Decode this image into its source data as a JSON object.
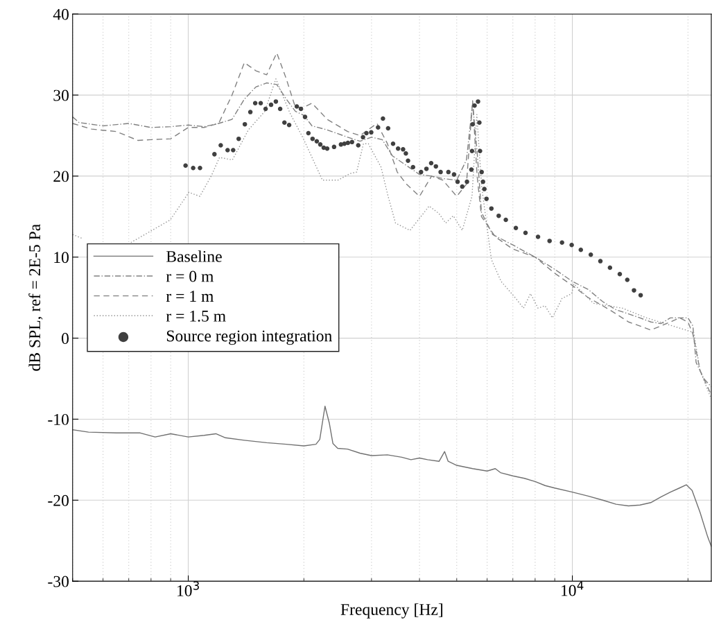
{
  "chart_data": {
    "type": "line",
    "xlabel": "Frequency [Hz]",
    "ylabel": "dB SPL, ref = 2E-5 Pa",
    "log": "x",
    "xlim": [
      500,
      23000
    ],
    "xticks": [
      {
        "value": 1000,
        "label": "10$^{3}$"
      },
      {
        "value": 10000,
        "label": "10$^{4}$"
      }
    ],
    "ylim": [
      -30,
      40
    ],
    "yticks": [
      -30,
      -20,
      -10,
      0,
      10,
      20,
      30,
      40
    ],
    "grid": true,
    "legend": "left",
    "series": [
      {
        "name": "Baseline",
        "line_style": "solid",
        "color": "#707070",
        "x": [
          500,
          550,
          650,
          750,
          820,
          900,
          1000,
          1100,
          1180,
          1250,
          1400,
          1600,
          1800,
          2000,
          2150,
          2200,
          2270,
          2330,
          2380,
          2450,
          2600,
          2800,
          3000,
          3300,
          3600,
          3800,
          4000,
          4200,
          4500,
          4650,
          4750,
          5000,
          5500,
          6000,
          6300,
          6500,
          7000,
          7500,
          8000,
          8500,
          9000,
          10000,
          11000,
          12000,
          13000,
          14000,
          15000,
          16000,
          17000,
          18000,
          19000,
          19800,
          20500,
          21500,
          22500,
          23000
        ],
        "values": [
          -11.3,
          -11.6,
          -11.7,
          -11.7,
          -12.2,
          -11.8,
          -12.2,
          -12.0,
          -11.8,
          -12.3,
          -12.6,
          -12.9,
          -13.1,
          -13.3,
          -13.1,
          -12.5,
          -8.4,
          -10.5,
          -13.0,
          -13.6,
          -13.7,
          -14.2,
          -14.5,
          -14.4,
          -14.7,
          -15.0,
          -14.8,
          -15.0,
          -15.2,
          -14.0,
          -15.2,
          -15.7,
          -16.1,
          -16.4,
          -16.1,
          -16.6,
          -17.0,
          -17.3,
          -17.7,
          -18.2,
          -18.5,
          -19.0,
          -19.5,
          -20.0,
          -20.5,
          -20.7,
          -20.6,
          -20.3,
          -19.6,
          -19.0,
          -18.5,
          -18.1,
          -18.8,
          -21.5,
          -24.5,
          -25.7
        ]
      },
      {
        "name": "r = 0 m",
        "line_style": "dashdot",
        "color": "#808080",
        "x": [
          500,
          520,
          600,
          700,
          800,
          900,
          1000,
          1100,
          1200,
          1300,
          1400,
          1500,
          1600,
          1700,
          1800,
          1900,
          2000,
          2100,
          2300,
          2600,
          2800,
          3000,
          3200,
          3400,
          3700,
          4000,
          4300,
          4600,
          5000,
          5300,
          5500,
          5650,
          5800,
          6200,
          7000,
          8000,
          9000,
          10000,
          11000,
          12000,
          13000,
          14000,
          15000,
          16000,
          17000,
          18000,
          19000,
          20000,
          20600,
          21000,
          22000,
          23000
        ],
        "values": [
          27.3,
          26.6,
          26.2,
          26.5,
          26.0,
          26.1,
          26.3,
          26.1,
          26.5,
          27.0,
          29.5,
          31.0,
          31.5,
          31.3,
          29.5,
          28.0,
          27.5,
          26.2,
          25.7,
          24.8,
          24.3,
          24.8,
          24.5,
          22.5,
          21.3,
          20.2,
          20.0,
          19.7,
          19.5,
          22.0,
          29.0,
          23.0,
          15.5,
          12.8,
          11.5,
          10.0,
          8.5,
          7.0,
          6.0,
          4.5,
          3.5,
          3.0,
          2.5,
          2.0,
          1.8,
          2.5,
          2.5,
          2.5,
          1.5,
          -3.0,
          -5.0,
          -6.0
        ]
      },
      {
        "name": "r = 1 m",
        "line_style": "dashed",
        "color": "#808080",
        "x": [
          500,
          560,
          650,
          740,
          800,
          900,
          1000,
          1100,
          1200,
          1300,
          1400,
          1500,
          1600,
          1700,
          1800,
          1900,
          2000,
          2100,
          2300,
          2600,
          2800,
          3100,
          3300,
          3500,
          3700,
          4000,
          4300,
          4600,
          5000,
          5300,
          5500,
          5650,
          5800,
          6300,
          7000,
          8000,
          9000,
          10000,
          11000,
          12000,
          13000,
          14000,
          15000,
          16000,
          17000,
          18000,
          19000,
          20000,
          20600,
          21500,
          23000
        ],
        "values": [
          26.5,
          25.8,
          25.5,
          24.4,
          24.5,
          24.6,
          26.0,
          26.0,
          26.5,
          30.0,
          34.0,
          33.0,
          32.5,
          35.2,
          32.0,
          28.5,
          28.5,
          29.0,
          27.0,
          25.5,
          25.0,
          26.5,
          24.0,
          20.5,
          19.0,
          17.5,
          20.0,
          19.5,
          17.5,
          19.0,
          29.3,
          20.0,
          15.0,
          12.5,
          11.0,
          10.0,
          8.0,
          6.5,
          5.0,
          4.0,
          3.0,
          2.0,
          1.5,
          1.0,
          1.5,
          2.0,
          2.5,
          2.0,
          0.5,
          -4.0,
          -7.0
        ]
      },
      {
        "name": "r = 1.5 m",
        "line_style": "dotted",
        "color": "#909090",
        "x": [
          500,
          530,
          600,
          709,
          898,
          1004,
          1072,
          1150,
          1206,
          1303,
          1434,
          1583,
          1691,
          1839,
          1995,
          2235,
          2455,
          2634,
          2745,
          2858,
          2943,
          3177,
          3314,
          3464,
          3779,
          4238,
          4490,
          4680,
          4899,
          5169,
          5480,
          5640,
          5806,
          6155,
          6524,
          7127,
          7460,
          7784,
          8140,
          8488,
          8870,
          9400,
          9960,
          10090,
          11350,
          13500,
          15600,
          20700,
          21500,
          23000
        ],
        "values": [
          12.8,
          12.3,
          null,
          11.8,
          14.6,
          18.0,
          17.5,
          20.1,
          22.3,
          22.0,
          25.7,
          28.0,
          32.0,
          27.8,
          24.6,
          19.5,
          19.5,
          20.3,
          20.5,
          24.0,
          24.0,
          21.1,
          17.5,
          14.2,
          13.3,
          16.3,
          15.4,
          14.2,
          15.1,
          13.3,
          17.5,
          27.6,
          18.7,
          9.7,
          7.0,
          4.9,
          3.7,
          5.5,
          3.7,
          4.0,
          2.5,
          4.9,
          5.5,
          6.7,
          4.3,
          3.7,
          2.5,
          0.7,
          -4.0,
          -7.5
        ]
      },
      {
        "name": "Source region integration",
        "type": "scatter",
        "marker": "circle",
        "color": "#404040",
        "x": [
          984,
          1030,
          1073,
          1170,
          1215,
          1266,
          1309,
          1353,
          1404,
          1451,
          1494,
          1544,
          1590,
          1643,
          1691,
          1735,
          1780,
          1831,
          1917,
          1965,
          2014,
          2055,
          2107,
          2161,
          2207,
          2253,
          2300,
          2397,
          2498,
          2550,
          2604,
          2669,
          2771,
          2851,
          2910,
          2995,
          3120,
          3213,
          3314,
          3414,
          3518,
          3625,
          3686,
          3734,
          3848,
          4037,
          4170,
          4290,
          4413,
          4540,
          4757,
          4920,
          5026,
          5169,
          5317,
          5459,
          5480,
          5500,
          5565,
          5681,
          5727,
          5750,
          5806,
          5854,
          5902,
          5977,
          6155,
          6431,
          6711,
          7127,
          7552,
          8140,
          8724,
          9400,
          9960,
          10520,
          11170,
          11830,
          12530,
          13290,
          13900,
          14470,
          15060
        ],
        "values": [
          21.3,
          21.0,
          21.0,
          22.7,
          23.8,
          23.2,
          23.2,
          24.6,
          26.4,
          27.9,
          29.0,
          29.0,
          28.3,
          28.8,
          29.2,
          28.3,
          26.6,
          26.3,
          28.6,
          28.3,
          27.3,
          25.3,
          24.6,
          24.3,
          23.9,
          23.5,
          23.4,
          23.6,
          23.9,
          24.0,
          24.1,
          24.2,
          23.8,
          24.8,
          25.3,
          25.4,
          26.0,
          27.1,
          25.9,
          24.0,
          23.4,
          23.3,
          22.8,
          21.9,
          21.1,
          20.5,
          20.9,
          21.6,
          21.2,
          20.5,
          20.5,
          20.2,
          19.3,
          18.7,
          19.3,
          20.8,
          23.1,
          26.4,
          28.7,
          29.2,
          26.6,
          23.1,
          20.5,
          19.3,
          18.4,
          17.2,
          16.0,
          15.1,
          14.6,
          13.6,
          13.0,
          12.5,
          12.0,
          11.8,
          11.5,
          10.9,
          10.3,
          9.5,
          8.7,
          7.9,
          7.2,
          5.9,
          5.3
        ]
      }
    ]
  }
}
